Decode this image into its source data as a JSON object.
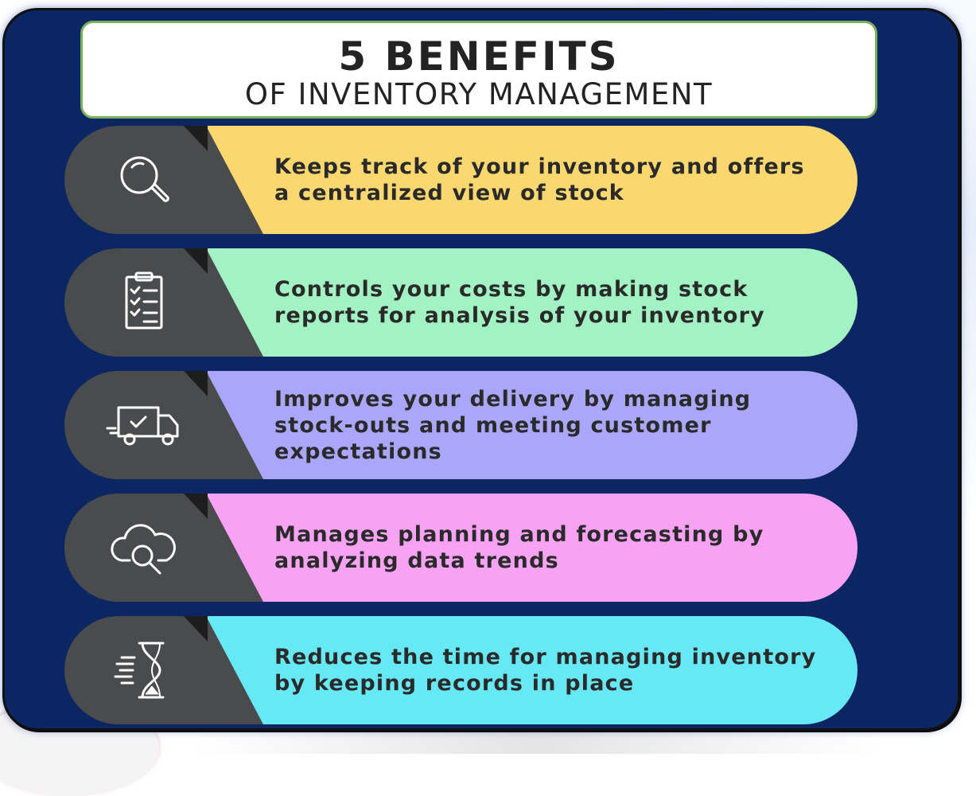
{
  "title": {
    "main": "5 BENEFITS",
    "sub": "OF INVENTORY MANAGEMENT"
  },
  "benefits": [
    {
      "text": "Keeps track of your inventory and offers a centralized view of stock",
      "color": "#fbd86f",
      "icon": "magnifying-glass-icon"
    },
    {
      "text": "Controls your costs by making stock reports for analysis of your inventory",
      "color": "#a2f2c3",
      "icon": "checklist-clipboard-icon"
    },
    {
      "text": "Improves your delivery by managing stock-outs and meeting customer expectations",
      "color": "#aaa7fa",
      "icon": "delivery-truck-icon"
    },
    {
      "text": "Manages planning and forecasting by analyzing data trends",
      "color": "#f8a2f4",
      "icon": "cloud-search-icon"
    },
    {
      "text": "Reduces the time for managing inventory by keeping records in place",
      "color": "#66e9f4",
      "icon": "hourglass-icon"
    }
  ],
  "colors": {
    "card_background": "#0b2663",
    "title_border": "#7bb05a",
    "icon_panel": "#4a4b4d"
  }
}
